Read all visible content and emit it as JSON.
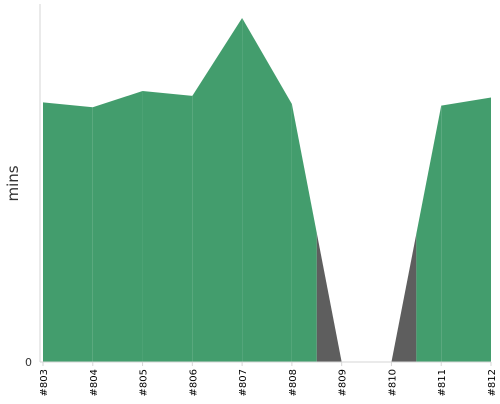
{
  "chart_data": {
    "type": "area",
    "ylabel": "mins",
    "xlabel": "",
    "categories": [
      "#803",
      "#804",
      "#805",
      "#806",
      "#807",
      "#808",
      "#809",
      "#810",
      "#811",
      "#812"
    ],
    "ylim": [
      0,
      22
    ],
    "yticks": [
      0
    ],
    "grid": false,
    "series": [
      {
        "values": [
          16,
          15.7,
          16.7,
          16.4,
          21.2,
          15.9,
          0,
          0,
          15.8,
          16.3
        ]
      }
    ],
    "colors": {
      "success": "#439d6d",
      "failure": "#5e5e5e",
      "axis": "#d6d6d6",
      "text": "#333333"
    }
  }
}
